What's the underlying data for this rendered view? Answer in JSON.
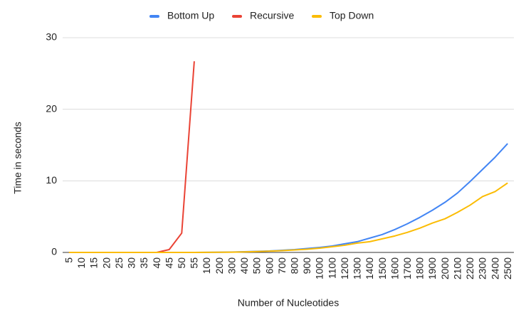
{
  "chart_data": {
    "type": "line",
    "x_label": "Number of Nucleotides",
    "y_label": "Time in seconds",
    "categories": [
      5,
      10,
      15,
      20,
      25,
      30,
      35,
      40,
      45,
      50,
      55,
      100,
      200,
      300,
      400,
      500,
      600,
      700,
      800,
      900,
      1000,
      1100,
      1200,
      1300,
      1400,
      1500,
      1600,
      1700,
      1800,
      1900,
      2000,
      2100,
      2200,
      2300,
      2400,
      2500
    ],
    "series": [
      {
        "name": "Bottom Up",
        "color": "#4285f4",
        "values": [
          0,
          0,
          0,
          0,
          0,
          0,
          0,
          0,
          0,
          0,
          0,
          0.01,
          0.02,
          0.05,
          0.1,
          0.15,
          0.2,
          0.3,
          0.4,
          0.55,
          0.7,
          0.9,
          1.2,
          1.5,
          2.0,
          2.5,
          3.2,
          4.0,
          4.9,
          5.9,
          7.0,
          8.3,
          9.9,
          11.6,
          13.3,
          15.2
        ]
      },
      {
        "name": "Recursive",
        "color": "#ea4335",
        "values": [
          0,
          0,
          0,
          0,
          0,
          0,
          0,
          0,
          0.4,
          2.7,
          26.7,
          null,
          null,
          null,
          null,
          null,
          null,
          null,
          null,
          null,
          null,
          null,
          null,
          null,
          null,
          null,
          null,
          null,
          null,
          null,
          null,
          null,
          null,
          null,
          null,
          null
        ]
      },
      {
        "name": "Top Down",
        "color": "#fbbc04",
        "values": [
          0,
          0,
          0,
          0,
          0,
          0,
          0,
          0,
          0,
          0,
          0,
          0.01,
          0.02,
          0.04,
          0.08,
          0.12,
          0.18,
          0.25,
          0.35,
          0.45,
          0.6,
          0.8,
          1.0,
          1.3,
          1.5,
          1.9,
          2.3,
          2.8,
          3.4,
          4.1,
          4.7,
          5.6,
          6.6,
          7.8,
          8.5,
          9.7
        ]
      }
    ],
    "ylim": [
      0,
      30
    ],
    "yticks": [
      0,
      10,
      20,
      30
    ],
    "grid": true,
    "legend": "top"
  }
}
